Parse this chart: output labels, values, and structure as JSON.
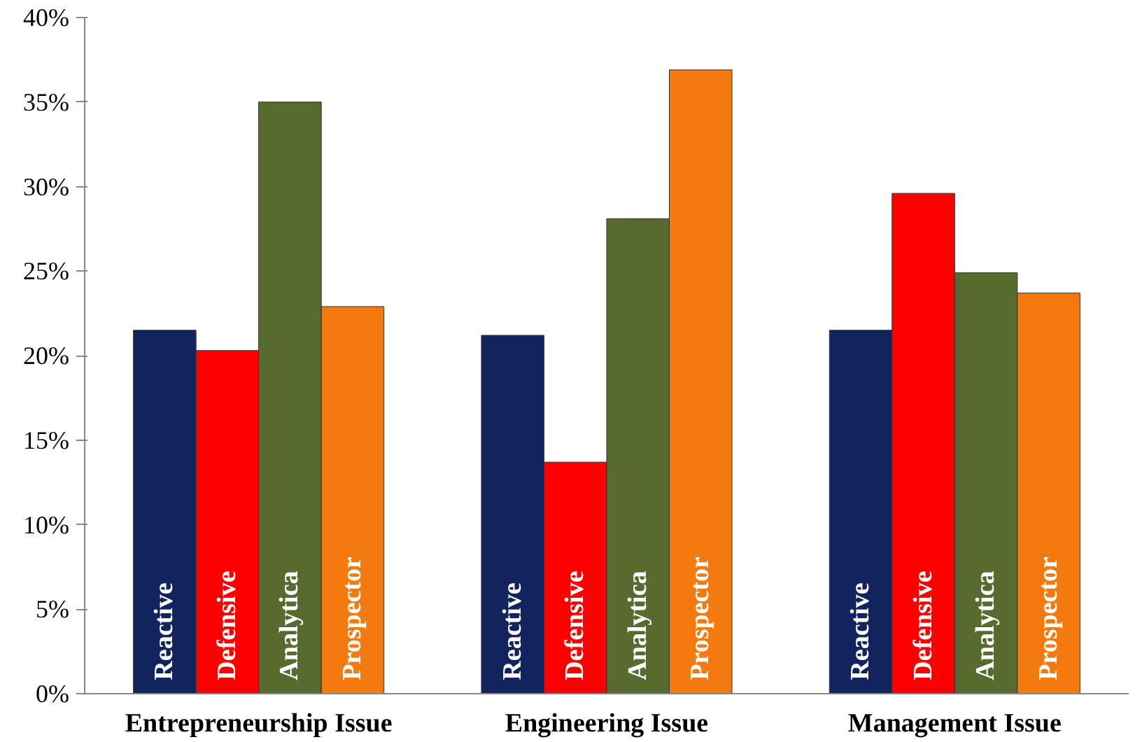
{
  "chart_data": {
    "type": "bar",
    "categories": [
      "Entrepreneurship Issue",
      "Engineering Issue",
      "Management Issue"
    ],
    "series": [
      {
        "name": "Reactive",
        "color": "#12245e",
        "values": [
          21.5,
          21.2,
          21.5
        ]
      },
      {
        "name": "Defensive",
        "color": "#ff0000",
        "values": [
          20.3,
          13.7,
          29.6
        ]
      },
      {
        "name": "Analytica",
        "color": "#566b2d",
        "values": [
          35.0,
          28.1,
          24.9
        ]
      },
      {
        "name": "Prospector",
        "color": "#f47a10",
        "values": [
          22.9,
          36.9,
          23.7
        ]
      }
    ],
    "ylim": [
      0,
      40
    ],
    "yticks": [
      {
        "value": 0,
        "label": "0%"
      },
      {
        "value": 5,
        "label": "5%"
      },
      {
        "value": 10,
        "label": "10%"
      },
      {
        "value": 15,
        "label": "15%"
      },
      {
        "value": 20,
        "label": "20%"
      },
      {
        "value": 25,
        "label": "25%"
      },
      {
        "value": 30,
        "label": "30%"
      },
      {
        "value": 35,
        "label": "35%"
      },
      {
        "value": 40,
        "label": "40%"
      }
    ],
    "grid": false,
    "legend": false
  }
}
